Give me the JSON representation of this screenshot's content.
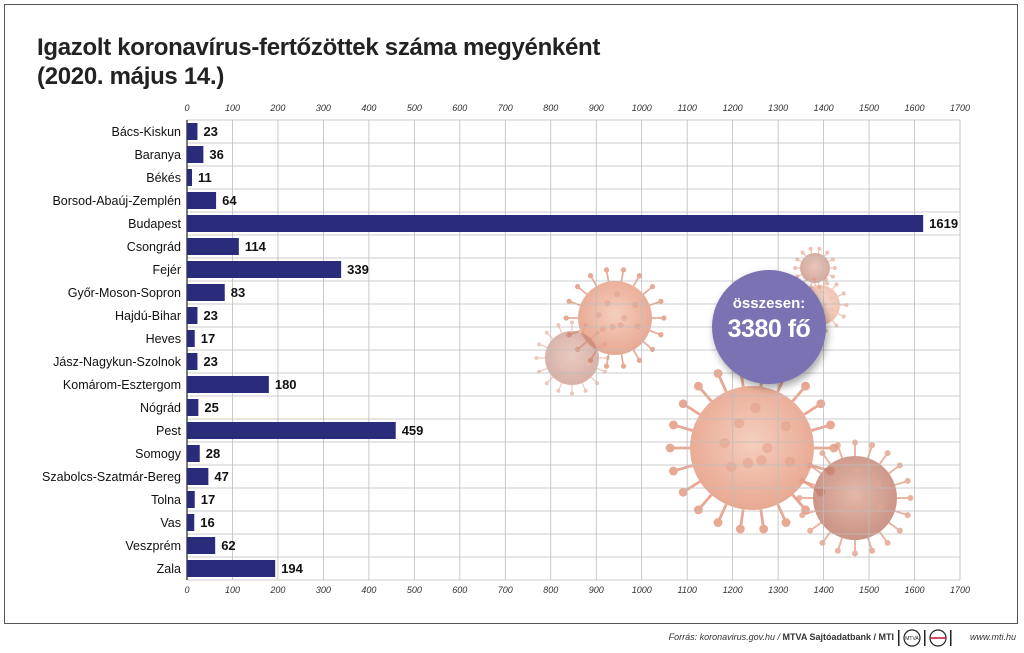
{
  "title_line1": "Igazolt koronavírus-fertőzöttek száma megyénként",
  "title_line2": "(2020. május 14.)",
  "chart_data": {
    "type": "bar",
    "orientation": "horizontal",
    "categories": [
      "Bács-Kiskun",
      "Baranya",
      "Békés",
      "Borsod-Abaúj-Zemplén",
      "Budapest",
      "Csongrád",
      "Fejér",
      "Győr-Moson-Sopron",
      "Hajdú-Bihar",
      "Heves",
      "Jász-Nagykun-Szolnok",
      "Komárom-Esztergom",
      "Nógrád",
      "Pest",
      "Somogy",
      "Szabolcs-Szatmár-Bereg",
      "Tolna",
      "Vas",
      "Veszprém",
      "Zala"
    ],
    "values": [
      23,
      36,
      11,
      64,
      1619,
      114,
      339,
      83,
      23,
      17,
      23,
      180,
      25,
      459,
      28,
      47,
      17,
      16,
      62,
      194
    ],
    "xlim": [
      0,
      1700
    ],
    "ticks": [
      0,
      100,
      200,
      300,
      400,
      500,
      600,
      700,
      800,
      900,
      1000,
      1100,
      1200,
      1300,
      1400,
      1500,
      1600,
      1700
    ],
    "axis_position": "top and bottom",
    "grid": true,
    "bar_color": "#2a2b7a",
    "data_labels": true
  },
  "total": {
    "label": "összesen:",
    "value": "3380 fő",
    "color": "#7a72b3"
  },
  "decoration": {
    "virus_icon": "coronavirus-illustration",
    "virus_color": "#e8a58e"
  },
  "footer": {
    "source_prefix": "Forrás: koronavirus.gov.hu / ",
    "source_bold": "MTVA Sajtóadatbank / MTI",
    "logo": "mtva-mti-logo",
    "website": "www.mti.hu"
  }
}
